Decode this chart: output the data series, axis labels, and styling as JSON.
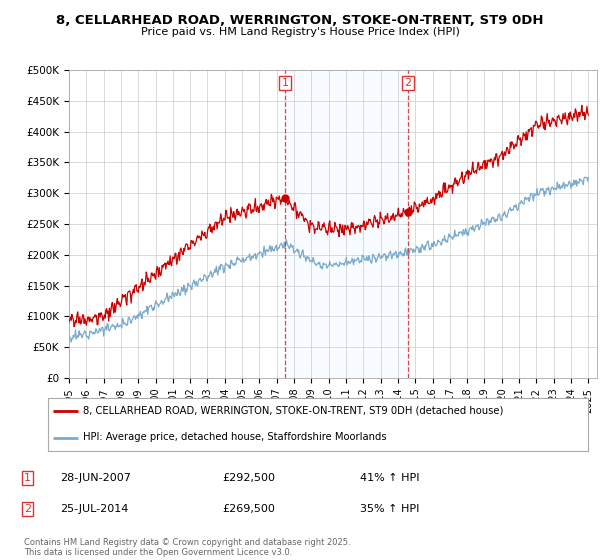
{
  "title": "8, CELLARHEAD ROAD, WERRINGTON, STOKE-ON-TRENT, ST9 0DH",
  "subtitle": "Price paid vs. HM Land Registry's House Price Index (HPI)",
  "ylabel_ticks": [
    "£0",
    "£50K",
    "£100K",
    "£150K",
    "£200K",
    "£250K",
    "£300K",
    "£350K",
    "£400K",
    "£450K",
    "£500K"
  ],
  "ytick_values": [
    0,
    50000,
    100000,
    150000,
    200000,
    250000,
    300000,
    350000,
    400000,
    450000,
    500000
  ],
  "ylim": [
    0,
    500000
  ],
  "xlim_start": 1995.0,
  "xlim_end": 2025.5,
  "red_line_color": "#cc0000",
  "blue_line_color": "#7aaacc",
  "blue_fill_color": "#ddeeff",
  "vline_color": "#dd3333",
  "purchase1_x": 2007.49,
  "purchase1_y": 292500,
  "purchase1_label": "1",
  "purchase2_x": 2014.57,
  "purchase2_y": 269500,
  "purchase2_label": "2",
  "legend1_text": "8, CELLARHEAD ROAD, WERRINGTON, STOKE-ON-TRENT, ST9 0DH (detached house)",
  "legend2_text": "HPI: Average price, detached house, Staffordshire Moorlands",
  "annotation1": "28-JUN-2007",
  "annotation1_price": "£292,500",
  "annotation1_hpi": "41% ↑ HPI",
  "annotation2": "25-JUL-2014",
  "annotation2_price": "£269,500",
  "annotation2_hpi": "35% ↑ HPI",
  "copyright_text": "Contains HM Land Registry data © Crown copyright and database right 2025.\nThis data is licensed under the Open Government Licence v3.0.",
  "xtick_years": [
    1995,
    1996,
    1997,
    1998,
    1999,
    2000,
    2001,
    2002,
    2003,
    2004,
    2005,
    2006,
    2007,
    2008,
    2009,
    2010,
    2011,
    2012,
    2013,
    2014,
    2015,
    2016,
    2017,
    2018,
    2019,
    2020,
    2021,
    2022,
    2023,
    2024,
    2025
  ],
  "background_color": "#ffffff",
  "plot_bg_color": "#ffffff"
}
